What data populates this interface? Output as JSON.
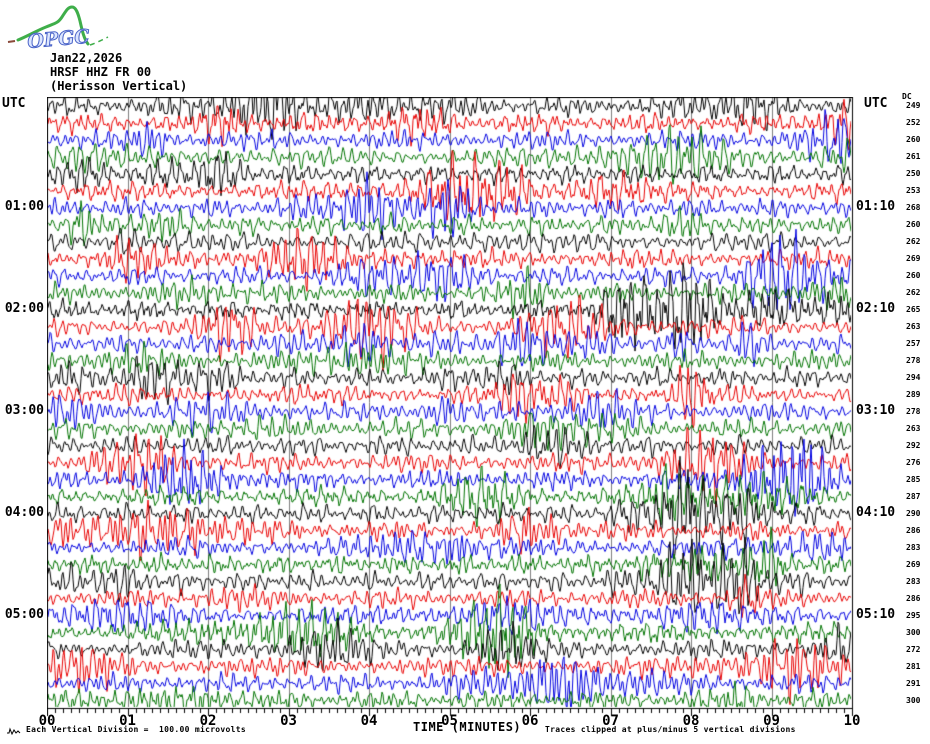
{
  "logo": {
    "text": "OPGC",
    "curve_color": "#3fae4a",
    "text_color": "#4a63c8",
    "dash_color": "#8a4a3a"
  },
  "header": {
    "date": "Jan22,2026",
    "station": "HRSF HHZ FR 00",
    "subtitle": "(Herisson Vertical)"
  },
  "labels": {
    "left_utc": "UTC",
    "right_utc": "UTC",
    "dc_header": "DC"
  },
  "axis": {
    "xlabel": "TIME (MINUTES)",
    "x_tick_labels": [
      "00",
      "01",
      "02",
      "03",
      "04",
      "05",
      "06",
      "07",
      "08",
      "09",
      "10"
    ]
  },
  "footer": {
    "scale_note": "Each Vertical Division =  100.00 microvolts",
    "clip_note": "Traces clipped at plus/minus 5 vertical divisions"
  },
  "chart_data": {
    "type": "line",
    "title": "HRSF HHZ FR 00 (Herisson Vertical) helicorder, Jan22,2026",
    "xlabel": "TIME (MINUTES)",
    "x_range_minutes": [
      0,
      10
    ],
    "minutes_per_row": 10,
    "rows_count": 36,
    "grid": true,
    "grid_color": "#7d7d7d",
    "frame_color": "#000000",
    "vertical_division_microvolts": 100.0,
    "clip_divisions": 5,
    "colors": {
      "black": "#000000",
      "red": "#e80000",
      "blue": "#0000e0",
      "green": "#007400"
    },
    "rows": [
      {
        "start": "00:00",
        "end": "00:10",
        "color": "black",
        "dc": 249
      },
      {
        "start": "00:10",
        "end": "00:20",
        "color": "red",
        "dc": 252
      },
      {
        "start": "00:20",
        "end": "00:30",
        "color": "blue",
        "dc": 260
      },
      {
        "start": "00:30",
        "end": "00:40",
        "color": "green",
        "dc": 261
      },
      {
        "start": "00:40",
        "end": "00:50",
        "color": "black",
        "dc": 250
      },
      {
        "start": "00:50",
        "end": "01:00",
        "color": "red",
        "dc": 253
      },
      {
        "start": "01:00",
        "end": "01:10",
        "color": "blue",
        "dc": 268
      },
      {
        "start": "01:10",
        "end": "01:20",
        "color": "green",
        "dc": 260
      },
      {
        "start": "01:20",
        "end": "01:30",
        "color": "black",
        "dc": 262
      },
      {
        "start": "01:30",
        "end": "01:40",
        "color": "red",
        "dc": 269
      },
      {
        "start": "01:40",
        "end": "01:50",
        "color": "blue",
        "dc": 260
      },
      {
        "start": "01:50",
        "end": "02:00",
        "color": "green",
        "dc": 262
      },
      {
        "start": "02:00",
        "end": "02:10",
        "color": "black",
        "dc": 265
      },
      {
        "start": "02:10",
        "end": "02:20",
        "color": "red",
        "dc": 263
      },
      {
        "start": "02:20",
        "end": "02:30",
        "color": "blue",
        "dc": 257
      },
      {
        "start": "02:30",
        "end": "02:40",
        "color": "green",
        "dc": 278
      },
      {
        "start": "02:40",
        "end": "02:50",
        "color": "black",
        "dc": 294
      },
      {
        "start": "02:50",
        "end": "03:00",
        "color": "red",
        "dc": 289
      },
      {
        "start": "03:00",
        "end": "03:10",
        "color": "blue",
        "dc": 278
      },
      {
        "start": "03:10",
        "end": "03:20",
        "color": "green",
        "dc": 263
      },
      {
        "start": "03:20",
        "end": "03:30",
        "color": "black",
        "dc": 292
      },
      {
        "start": "03:30",
        "end": "03:40",
        "color": "red",
        "dc": 276
      },
      {
        "start": "03:40",
        "end": "03:50",
        "color": "blue",
        "dc": 285
      },
      {
        "start": "03:50",
        "end": "04:00",
        "color": "green",
        "dc": 287
      },
      {
        "start": "04:00",
        "end": "04:10",
        "color": "black",
        "dc": 290
      },
      {
        "start": "04:10",
        "end": "04:20",
        "color": "red",
        "dc": 286
      },
      {
        "start": "04:20",
        "end": "04:30",
        "color": "blue",
        "dc": 283
      },
      {
        "start": "04:30",
        "end": "04:40",
        "color": "green",
        "dc": 269
      },
      {
        "start": "04:40",
        "end": "04:50",
        "color": "black",
        "dc": 283
      },
      {
        "start": "04:50",
        "end": "05:00",
        "color": "red",
        "dc": 286
      },
      {
        "start": "05:00",
        "end": "05:10",
        "color": "blue",
        "dc": 295
      },
      {
        "start": "05:10",
        "end": "05:20",
        "color": "green",
        "dc": 300
      },
      {
        "start": "05:20",
        "end": "05:30",
        "color": "black",
        "dc": 272
      },
      {
        "start": "05:30",
        "end": "05:40",
        "color": "red",
        "dc": 281
      },
      {
        "start": "05:40",
        "end": "05:50",
        "color": "blue",
        "dc": 291
      },
      {
        "start": "05:50",
        "end": "06:00",
        "color": "green",
        "dc": 300
      }
    ],
    "left_hour_labels": [
      {
        "row": 6,
        "label": "01:00"
      },
      {
        "row": 12,
        "label": "02:00"
      },
      {
        "row": 18,
        "label": "03:00"
      },
      {
        "row": 24,
        "label": "04:00"
      },
      {
        "row": 30,
        "label": "05:00"
      }
    ],
    "right_hour_labels": [
      {
        "row": 6,
        "label": "01:10"
      },
      {
        "row": 12,
        "label": "02:10"
      },
      {
        "row": 18,
        "label": "03:10"
      },
      {
        "row": 24,
        "label": "04:10"
      },
      {
        "row": 30,
        "label": "05:10"
      }
    ]
  }
}
